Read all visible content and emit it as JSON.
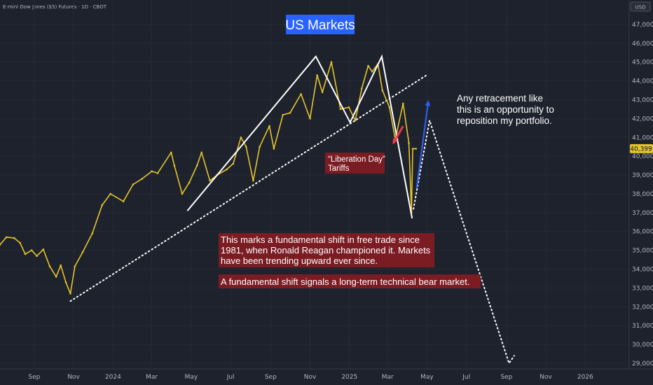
{
  "header": {
    "symbol_line": "E-mini Dow Jones ($5) Futures · 1D · CBOT"
  },
  "colors": {
    "background": "#1e222d",
    "price": "#e3c52c",
    "title_bg": "#2962ff",
    "annotation_bg": "#7b1c23",
    "arrow_red": "#f23645",
    "arrow_blue": "#2f5cf0",
    "lines": "#ffffff"
  },
  "chart_data": {
    "type": "line",
    "title": "US Markets",
    "currency": "USD",
    "xlabel": "",
    "ylabel": "",
    "ylim": [
      28700,
      48300
    ],
    "yticks": [
      29000,
      30000,
      31000,
      32000,
      33000,
      34000,
      35000,
      36000,
      37000,
      38000,
      39000,
      40000,
      41000,
      42000,
      43000,
      44000,
      45000,
      46000,
      47000
    ],
    "ytick_labels": [
      "29,000",
      "30,000",
      "31,000",
      "32,000",
      "33,000",
      "34,000",
      "35,000",
      "36,000",
      "37,000",
      "38,000",
      "39,000",
      "40,000",
      "41,000",
      "42,000",
      "43,000",
      "44,000",
      "45,000",
      "46,000",
      "47,000"
    ],
    "x_range": [
      "2023-07-10",
      "2026-03-10"
    ],
    "xtick_labels": [
      {
        "label": "Sep",
        "date": "2023-09-01"
      },
      {
        "label": "Nov",
        "date": "2023-11-01"
      },
      {
        "label": "2024",
        "date": "2024-01-01"
      },
      {
        "label": "Mar",
        "date": "2024-03-01"
      },
      {
        "label": "May",
        "date": "2024-05-01"
      },
      {
        "label": "Jul",
        "date": "2024-07-01"
      },
      {
        "label": "Sep",
        "date": "2024-09-01"
      },
      {
        "label": "Nov",
        "date": "2024-11-01"
      },
      {
        "label": "2025",
        "date": "2025-01-01"
      },
      {
        "label": "Mar",
        "date": "2025-03-01"
      },
      {
        "label": "May",
        "date": "2025-05-01"
      },
      {
        "label": "Jul",
        "date": "2025-07-01"
      },
      {
        "label": "Sep",
        "date": "2025-09-01"
      },
      {
        "label": "Nov",
        "date": "2025-11-01"
      },
      {
        "label": "2026",
        "date": "2026-01-01"
      }
    ],
    "last_price": 40399,
    "last_price_label": "40,399",
    "series": [
      {
        "values": [
          {
            "x": "2023-07-10",
            "y": 35300
          },
          {
            "x": "2023-07-20",
            "y": 35700
          },
          {
            "x": "2023-08-01",
            "y": 35650
          },
          {
            "x": "2023-08-10",
            "y": 35400
          },
          {
            "x": "2023-08-18",
            "y": 34800
          },
          {
            "x": "2023-08-28",
            "y": 35000
          },
          {
            "x": "2023-09-05",
            "y": 34700
          },
          {
            "x": "2023-09-15",
            "y": 35050
          },
          {
            "x": "2023-09-25",
            "y": 34150
          },
          {
            "x": "2023-10-05",
            "y": 33600
          },
          {
            "x": "2023-10-12",
            "y": 34200
          },
          {
            "x": "2023-10-20",
            "y": 33300
          },
          {
            "x": "2023-10-27",
            "y": 32700
          },
          {
            "x": "2023-11-03",
            "y": 34150
          },
          {
            "x": "2023-11-15",
            "y": 34900
          },
          {
            "x": "2023-11-30",
            "y": 35900
          },
          {
            "x": "2023-12-15",
            "y": 37400
          },
          {
            "x": "2023-12-28",
            "y": 38000
          },
          {
            "x": "2024-01-17",
            "y": 37600
          },
          {
            "x": "2024-02-01",
            "y": 38500
          },
          {
            "x": "2024-02-15",
            "y": 38800
          },
          {
            "x": "2024-03-01",
            "y": 39200
          },
          {
            "x": "2024-03-10",
            "y": 39100
          },
          {
            "x": "2024-03-31",
            "y": 40200
          },
          {
            "x": "2024-04-05",
            "y": 39500
          },
          {
            "x": "2024-04-17",
            "y": 38000
          },
          {
            "x": "2024-04-28",
            "y": 38600
          },
          {
            "x": "2024-05-10",
            "y": 39500
          },
          {
            "x": "2024-05-17",
            "y": 40200
          },
          {
            "x": "2024-05-30",
            "y": 38700
          },
          {
            "x": "2024-06-10",
            "y": 39000
          },
          {
            "x": "2024-06-25",
            "y": 39300
          },
          {
            "x": "2024-07-05",
            "y": 39600
          },
          {
            "x": "2024-07-17",
            "y": 41000
          },
          {
            "x": "2024-07-25",
            "y": 40500
          },
          {
            "x": "2024-08-05",
            "y": 38700
          },
          {
            "x": "2024-08-15",
            "y": 40500
          },
          {
            "x": "2024-08-30",
            "y": 41600
          },
          {
            "x": "2024-09-06",
            "y": 40400
          },
          {
            "x": "2024-09-20",
            "y": 42200
          },
          {
            "x": "2024-10-01",
            "y": 42300
          },
          {
            "x": "2024-10-18",
            "y": 43300
          },
          {
            "x": "2024-11-01",
            "y": 42000
          },
          {
            "x": "2024-11-12",
            "y": 44300
          },
          {
            "x": "2024-11-20",
            "y": 43400
          },
          {
            "x": "2024-12-04",
            "y": 45000
          },
          {
            "x": "2024-12-18",
            "y": 42500
          },
          {
            "x": "2024-12-31",
            "y": 42600
          },
          {
            "x": "2025-01-10",
            "y": 41900
          },
          {
            "x": "2025-01-20",
            "y": 43600
          },
          {
            "x": "2025-01-30",
            "y": 44800
          },
          {
            "x": "2025-02-05",
            "y": 44500
          },
          {
            "x": "2025-02-14",
            "y": 44900
          },
          {
            "x": "2025-02-21",
            "y": 43500
          },
          {
            "x": "2025-03-04",
            "y": 42600
          },
          {
            "x": "2025-03-13",
            "y": 40900
          },
          {
            "x": "2025-03-25",
            "y": 42800
          },
          {
            "x": "2025-04-03",
            "y": 40700
          },
          {
            "x": "2025-04-07",
            "y": 37000
          },
          {
            "x": "2025-04-09",
            "y": 40400
          },
          {
            "x": "2025-04-14",
            "y": 40399
          }
        ]
      }
    ],
    "projection_points": [
      {
        "x": "2025-04-10",
        "y": 37200
      },
      {
        "x": "2025-05-05",
        "y": 41900
      },
      {
        "x": "2025-09-05",
        "y": 29000
      },
      {
        "x": "2025-09-13",
        "y": 29400
      }
    ],
    "trendline_points": [
      {
        "x": "2023-10-27",
        "y": 32300
      },
      {
        "x": "2025-04-30",
        "y": 44300
      }
    ],
    "pattern_points": [
      {
        "x": "2024-04-25",
        "y": 37100
      },
      {
        "x": "2024-11-10",
        "y": 45300
      },
      {
        "x": "2025-01-02",
        "y": 41800
      },
      {
        "x": "2025-02-20",
        "y": 45300
      },
      {
        "x": "2025-04-08",
        "y": 36700
      }
    ],
    "arrow_blue": [
      {
        "x": "2025-04-15",
        "y": 38300
      },
      {
        "x": "2025-05-03",
        "y": 42900
      }
    ],
    "arrow_red": [
      {
        "x": "2025-03-25",
        "y": 41600
      },
      {
        "x": "2025-03-10",
        "y": 40700
      }
    ],
    "annotations": [
      {
        "lines": [
          "“Liberation Day”",
          "Tariffs"
        ]
      },
      {
        "lines": [
          "This marks a fundamental shift in free trade since",
          "1981, when Ronald Reagan championed it. Markets",
          "have been trending upward ever since."
        ]
      },
      {
        "lines": [
          "A fundamental shift signals a long-term technical bear market."
        ]
      },
      {
        "lines": [
          "Any retracement like",
          "this is an opportunity to",
          "reposition my portfolio."
        ]
      }
    ]
  }
}
